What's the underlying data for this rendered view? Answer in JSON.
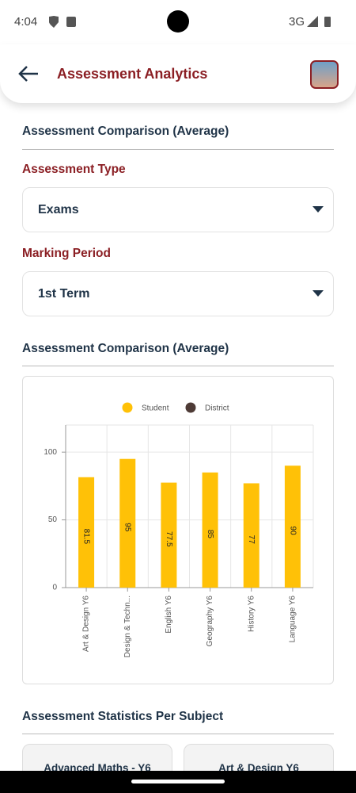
{
  "status_bar": {
    "time": "4:04",
    "network": "3G"
  },
  "app_bar": {
    "title": "Assessment Analytics"
  },
  "filters": {
    "heading": "Assessment Comparison (Average)",
    "assessment_type": {
      "label": "Assessment Type",
      "value": "Exams"
    },
    "marking_period": {
      "label": "Marking Period",
      "value": "1st Term"
    }
  },
  "chart_heading": "Assessment Comparison (Average)",
  "chart_data": {
    "type": "bar",
    "categories": [
      "Art & Design Y6",
      "Design & Techn...",
      "English Y6",
      "Geography Y6",
      "History Y6",
      "Language Y6"
    ],
    "series": [
      {
        "name": "Student",
        "color": "#FFC107",
        "values": [
          81.5,
          95,
          77.5,
          85,
          77,
          90
        ]
      },
      {
        "name": "District",
        "color": "#4E3B36",
        "values": [
          null,
          null,
          null,
          null,
          null,
          null
        ]
      }
    ],
    "ylim": [
      0,
      120
    ],
    "yticks": [
      0,
      50,
      100
    ],
    "grid": true,
    "legend": "top"
  },
  "statistics": {
    "heading": "Assessment Statistics Per Subject",
    "cards": [
      "Advanced Maths - Y6",
      "Art & Design Y6"
    ]
  }
}
